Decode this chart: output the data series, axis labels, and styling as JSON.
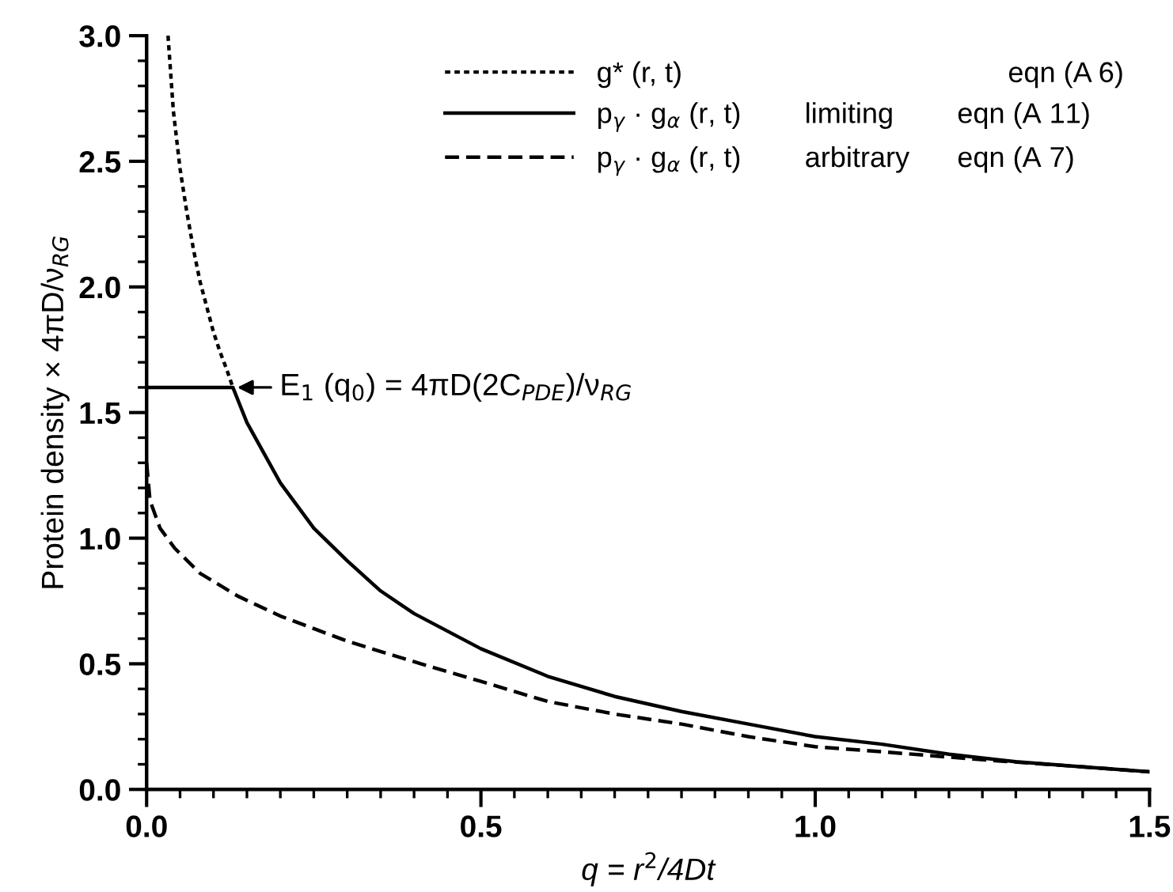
{
  "chart_data": {
    "type": "line",
    "xlabel": "q = r$^{2}$/4Dt",
    "ylabel": "Protein density × 4πD/ν$_{RG}$",
    "xlim": [
      0,
      1.5
    ],
    "ylim": [
      0,
      3.0
    ],
    "xticks": [
      {
        "value": 0,
        "label": "0.0"
      },
      {
        "value": 0.05,
        "label": null
      },
      {
        "value": 0.1,
        "label": null
      },
      {
        "value": 0.15,
        "label": null
      },
      {
        "value": 0.2,
        "label": null
      },
      {
        "value": 0.25,
        "label": null
      },
      {
        "value": 0.3,
        "label": null
      },
      {
        "value": 0.35,
        "label": null
      },
      {
        "value": 0.4,
        "label": null
      },
      {
        "value": 0.45,
        "label": null
      },
      {
        "value": 0.5,
        "label": "0.5"
      },
      {
        "value": 0.55,
        "label": null
      },
      {
        "value": 0.6,
        "label": null
      },
      {
        "value": 0.65,
        "label": null
      },
      {
        "value": 0.7,
        "label": null
      },
      {
        "value": 0.75,
        "label": null
      },
      {
        "value": 0.8,
        "label": null
      },
      {
        "value": 0.85,
        "label": null
      },
      {
        "value": 0.9,
        "label": null
      },
      {
        "value": 0.95,
        "label": null
      },
      {
        "value": 1.0,
        "label": "1.0"
      },
      {
        "value": 1.05,
        "label": null
      },
      {
        "value": 1.1,
        "label": null
      },
      {
        "value": 1.15,
        "label": null
      },
      {
        "value": 1.2,
        "label": null
      },
      {
        "value": 1.25,
        "label": null
      },
      {
        "value": 1.3,
        "label": null
      },
      {
        "value": 1.35,
        "label": null
      },
      {
        "value": 1.4,
        "label": null
      },
      {
        "value": 1.45,
        "label": null
      },
      {
        "value": 1.5,
        "label": "1.5"
      }
    ],
    "yticks": [
      {
        "value": 0,
        "label": "0.0"
      },
      {
        "value": 0.1,
        "label": null
      },
      {
        "value": 0.2,
        "label": null
      },
      {
        "value": 0.3,
        "label": null
      },
      {
        "value": 0.4,
        "label": null
      },
      {
        "value": 0.5,
        "label": "0.5"
      },
      {
        "value": 0.6,
        "label": null
      },
      {
        "value": 0.7,
        "label": null
      },
      {
        "value": 0.8,
        "label": null
      },
      {
        "value": 0.9,
        "label": null
      },
      {
        "value": 1.0,
        "label": "1.0"
      },
      {
        "value": 1.1,
        "label": null
      },
      {
        "value": 1.2,
        "label": null
      },
      {
        "value": 1.3,
        "label": null
      },
      {
        "value": 1.4,
        "label": null
      },
      {
        "value": 1.5,
        "label": "1.5"
      },
      {
        "value": 1.6,
        "label": null
      },
      {
        "value": 1.7,
        "label": null
      },
      {
        "value": 1.8,
        "label": null
      },
      {
        "value": 1.9,
        "label": null
      },
      {
        "value": 2.0,
        "label": "2.0"
      },
      {
        "value": 2.1,
        "label": null
      },
      {
        "value": 2.2,
        "label": null
      },
      {
        "value": 2.3,
        "label": null
      },
      {
        "value": 2.4,
        "label": null
      },
      {
        "value": 2.5,
        "label": "2.5"
      },
      {
        "value": 2.6,
        "label": null
      },
      {
        "value": 2.7,
        "label": null
      },
      {
        "value": 2.8,
        "label": null
      },
      {
        "value": 2.9,
        "label": null
      },
      {
        "value": 3.0,
        "label": "3.0"
      }
    ],
    "grid": false,
    "legend": "top right",
    "marker": "none",
    "series": [
      {
        "name": "g* (r, t)                                         eqn (A 6)",
        "color": "#000000",
        "line_style": "dotted",
        "x": [
          0.032,
          0.04,
          0.05,
          0.06,
          0.07,
          0.08,
          0.09,
          0.1,
          0.11,
          0.12,
          0.129
        ],
        "values": [
          3.0,
          2.7,
          2.47,
          2.3,
          2.15,
          2.02,
          1.92,
          1.82,
          1.74,
          1.67,
          1.6
        ]
      },
      {
        "name": "p$_{γ}$ · g$_{α}$ (r, t)        limiting        eqn (A 11)",
        "color": "#000000",
        "line_style": "solid",
        "x": [
          0,
          0.129,
          0.15,
          0.2,
          0.25,
          0.3,
          0.35,
          0.4,
          0.5,
          0.6,
          0.7,
          0.8,
          0.9,
          1.0,
          1.1,
          1.2,
          1.3,
          1.4,
          1.5
        ],
        "values": [
          1.6,
          1.6,
          1.46,
          1.22,
          1.04,
          0.91,
          0.79,
          0.7,
          0.56,
          0.45,
          0.37,
          0.31,
          0.26,
          0.21,
          0.18,
          0.14,
          0.11,
          0.09,
          0.07
        ]
      },
      {
        "name": "p$_{γ}$ · g$_{α}$ (r, t)        arbitrary      eqn (A 7)",
        "color": "#000000",
        "line_style": "dashed",
        "x": [
          0,
          0.005,
          0.02,
          0.042,
          0.08,
          0.136,
          0.2,
          0.25,
          0.3,
          0.41,
          0.5,
          0.6,
          0.7,
          0.8,
          0.9,
          1.0,
          1.1,
          1.24,
          1.4,
          1.5
        ],
        "values": [
          1.3,
          1.15,
          1.04,
          0.96,
          0.86,
          0.77,
          0.69,
          0.64,
          0.59,
          0.5,
          0.43,
          0.35,
          0.3,
          0.26,
          0.21,
          0.17,
          0.15,
          0.12,
          0.09,
          0.07
        ]
      }
    ],
    "annotations": [
      {
        "text": "E$_{1}$ (q$_{0}$) = 4πD(2C$_{PDE}$)/ν$_{RG}$",
        "x": 0.129,
        "y": 1.6
      }
    ]
  }
}
